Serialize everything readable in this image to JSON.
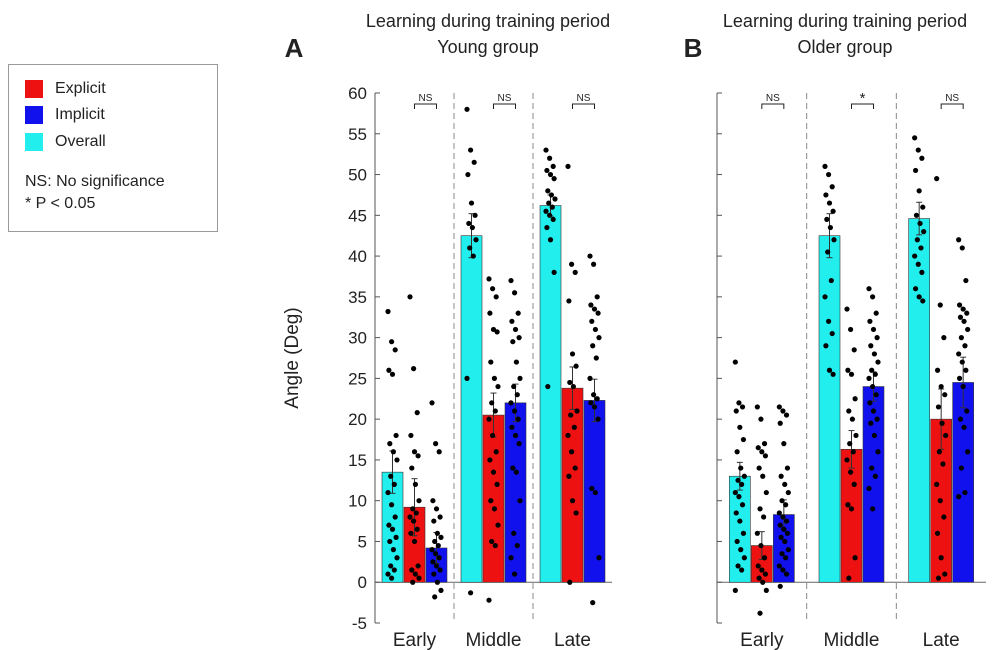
{
  "legend": {
    "items": [
      {
        "label": "Explicit",
        "color": "#ee1111"
      },
      {
        "label": "Implicit",
        "color": "#1111ee"
      },
      {
        "label": "Overall",
        "color": "#22eeee"
      }
    ],
    "note_ns": "NS: No significance",
    "note_p": "* P < 0.05"
  },
  "chart_data": [
    {
      "type": "bar",
      "panel_label": "A",
      "title": "Learning during training period",
      "subtitle": "Young group",
      "ylabel": "Angle (Deg)",
      "xlabel": "",
      "ylim": [
        -5,
        60
      ],
      "yticks": [
        -5,
        0,
        5,
        10,
        15,
        20,
        25,
        30,
        35,
        40,
        45,
        50,
        55,
        60
      ],
      "categories": [
        "Early",
        "Middle",
        "Late"
      ],
      "series": [
        {
          "name": "Overall",
          "color": "#22eeee",
          "values": [
            13.5,
            42.5,
            46.2
          ],
          "errors": [
            2.6,
            2.7,
            1.3
          ]
        },
        {
          "name": "Explicit",
          "color": "#ee1111",
          "values": [
            9.2,
            20.5,
            23.8
          ],
          "errors": [
            3.5,
            2.7,
            2.6
          ]
        },
        {
          "name": "Implicit",
          "color": "#1111ee",
          "values": [
            4.2,
            22.0,
            22.3
          ],
          "errors": [
            1.9,
            2.3,
            2.6
          ]
        }
      ],
      "significance": [
        "NS",
        "NS",
        "NS"
      ],
      "points": [
        [
          [
            33.2,
            29.5,
            28.5,
            26,
            25.5,
            18,
            17,
            16,
            15,
            13,
            12,
            11,
            9.5,
            8,
            7,
            6.5,
            5.5,
            5,
            4,
            3,
            2,
            1.5,
            1,
            0.5
          ],
          [
            35,
            26.2,
            20.8,
            18,
            16,
            15.5,
            14,
            12,
            10,
            9,
            8.5,
            8,
            7.5,
            6.5,
            6,
            5,
            2,
            1.5,
            1,
            0.5,
            0
          ],
          [
            22,
            17,
            16,
            10,
            9,
            8,
            7.5,
            6,
            5.5,
            5,
            4.5,
            4,
            3.5,
            3,
            2.5,
            2,
            1.5,
            1,
            0,
            -1,
            -1.8
          ]
        ],
        [
          [
            58,
            53,
            51.5,
            50,
            46.5,
            45,
            44,
            43.5,
            42,
            41,
            40,
            25,
            -1.3
          ],
          [
            37.2,
            36,
            35,
            33,
            31,
            30.7,
            27,
            25,
            24,
            22,
            21,
            20,
            18,
            16,
            15,
            13.5,
            12,
            10,
            9,
            7,
            5,
            4.5,
            -2.2
          ],
          [
            37,
            35.5,
            33,
            32,
            31,
            30,
            29.5,
            27,
            25,
            24,
            23,
            22,
            21,
            20,
            19,
            18,
            17,
            14,
            13.5,
            10,
            6,
            4.5,
            3,
            1
          ]
        ],
        [
          [
            53,
            52,
            51,
            50.5,
            50,
            49.5,
            48,
            47.5,
            47,
            46.5,
            46,
            45.5,
            45,
            44.5,
            43.5,
            42,
            38,
            24
          ],
          [
            51,
            39,
            38,
            34.5,
            28,
            26.5,
            24.5,
            24,
            21,
            20.5,
            19,
            18,
            16,
            14,
            13,
            10,
            8.5,
            0
          ],
          [
            40,
            39,
            35,
            34,
            33.5,
            33,
            32,
            31,
            30,
            29,
            27.5,
            25,
            23,
            22.5,
            22,
            21.5,
            20,
            11.5,
            11,
            3,
            -2.5
          ]
        ]
      ]
    },
    {
      "type": "bar",
      "panel_label": "B",
      "title": "Learning during training period",
      "subtitle": "Older group",
      "ylabel": "",
      "xlabel": "",
      "ylim": [
        -5,
        60
      ],
      "categories": [
        "Early",
        "Middle",
        "Late"
      ],
      "series": [
        {
          "name": "Overall",
          "color": "#22eeee",
          "values": [
            13.0,
            42.5,
            44.6
          ],
          "errors": [
            1.7,
            2.7,
            2.0
          ]
        },
        {
          "name": "Explicit",
          "color": "#ee1111",
          "values": [
            4.5,
            16.3,
            20.0
          ],
          "errors": [
            1.7,
            2.3,
            3.7
          ]
        },
        {
          "name": "Implicit",
          "color": "#1111ee",
          "values": [
            8.3,
            24.0,
            24.5
          ],
          "errors": [
            1.8,
            1.8,
            3.1
          ]
        }
      ],
      "significance": [
        "NS",
        "*",
        "NS"
      ],
      "points": [
        [
          [
            27,
            22,
            21.5,
            21,
            19,
            17.5,
            16,
            14,
            13,
            12.5,
            12,
            11,
            10.5,
            9.5,
            8.5,
            7.5,
            6,
            5,
            4,
            3,
            2,
            1.5,
            -1
          ],
          [
            21.5,
            20,
            17,
            16.5,
            16,
            15.5,
            14,
            13,
            11,
            9,
            8,
            6,
            4.5,
            3,
            2,
            1.5,
            1,
            0.5,
            0,
            -1,
            -3.8
          ],
          [
            21.5,
            21,
            20.5,
            19.5,
            17,
            14,
            13,
            12,
            11,
            10,
            9.5,
            8.5,
            8,
            7.5,
            7,
            6.5,
            6,
            5.5,
            5,
            4,
            3.5,
            3,
            2,
            1.5,
            1,
            -0.5
          ]
        ],
        [
          [
            51,
            50,
            48.5,
            47.5,
            46.5,
            45.5,
            44.5,
            43.5,
            42,
            40.5,
            37,
            35,
            32,
            30.5,
            29,
            26,
            25.5
          ],
          [
            33.5,
            31,
            28.5,
            26,
            25.5,
            22.5,
            21,
            20,
            18,
            17,
            16,
            15,
            13.5,
            12,
            9.5,
            9,
            3,
            0.5
          ],
          [
            36,
            35,
            33,
            32,
            31,
            30,
            29,
            28,
            27,
            26,
            25.5,
            25,
            24,
            23,
            22,
            21,
            20,
            19.5,
            18,
            16,
            14,
            13,
            11.5,
            9
          ]
        ],
        [
          [
            54.5,
            53,
            52,
            50.5,
            48,
            46,
            45,
            44,
            43,
            42,
            41,
            40,
            39,
            38,
            36,
            35,
            34.5
          ],
          [
            49.5,
            34,
            30,
            26,
            24,
            23,
            21.5,
            19.5,
            18,
            16,
            14.5,
            12,
            10,
            8,
            6,
            3,
            1,
            0.5
          ],
          [
            42,
            41,
            37,
            34,
            33.5,
            33,
            32.5,
            32,
            31,
            30,
            29,
            28,
            27,
            26,
            25,
            24,
            21,
            20,
            19,
            16,
            14,
            11,
            10.5
          ]
        ]
      ]
    }
  ]
}
